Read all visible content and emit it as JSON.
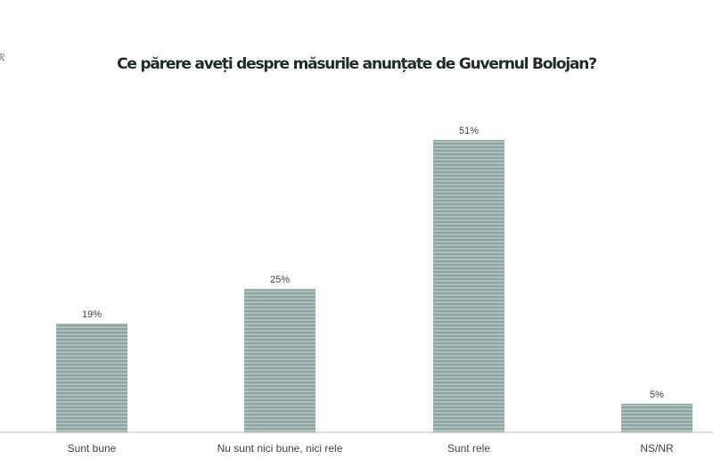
{
  "chart_data": {
    "type": "bar",
    "title": "Ce părere aveți despre măsurile anunțate de Guvernul Bolojan?",
    "categories": [
      "Sunt bune",
      "Nu sunt nici bune, nici rele",
      "Sunt rele",
      "NS/NR"
    ],
    "values": [
      19,
      25,
      51,
      5
    ],
    "data_labels": [
      "19%",
      "25%",
      "51%",
      "5%"
    ],
    "xlabel": "",
    "ylabel": "",
    "ylim": [
      0,
      51
    ],
    "grid": false,
    "bar_color": "#8ea4a0",
    "stripe_color": "#d6e2df"
  }
}
